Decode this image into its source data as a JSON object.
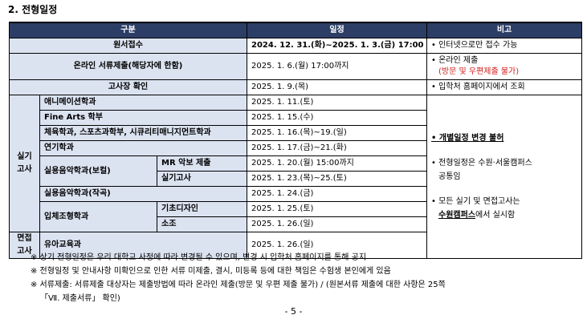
{
  "section_title": "2. 전형일정",
  "table": {
    "headers": {
      "category": "구분",
      "schedule": "일정",
      "remarks": "비고"
    },
    "application": {
      "label": "원서접수",
      "date": "2024. 12. 31.(화)~2025. 1. 3.(금) 17:00",
      "remark": "• 인터넷으로만 접수 가능"
    },
    "document_submission": {
      "label": "온라인 서류제출(해당자에 한함)",
      "date": "2025. 1. 6.(월) 17:00까지",
      "remark1": "• 온라인 제출",
      "remark2": "(방문 및 우편제출 불가)"
    },
    "exam_room": {
      "label": "고사장 확인",
      "date": "2025. 1. 9.(목)",
      "remark": "• 입학처 홈페이지에서 조회"
    },
    "practical_group": {
      "line1": "실기",
      "line2": "고사"
    },
    "interview_group": {
      "line1": "면접",
      "line2": "고사"
    },
    "practical_rows": [
      {
        "label": "애니메이션학과",
        "date": "2025. 1. 11.(토)"
      },
      {
        "label": "Fine Arts 학부",
        "date": "2025. 1. 15.(수)"
      },
      {
        "label": "체육학과, 스포츠과학부, 시큐리티매니지먼트학과",
        "date": "2025. 1. 16.(목)~19.(일)"
      },
      {
        "label": "연기학과",
        "date": "2025. 1. 17.(금)~21.(화)"
      }
    ],
    "vocal": {
      "label": "실용음악학과(보컬)",
      "sub1": "MR 악보 제출",
      "date1": "2025. 1. 20.(월) 15:00까지",
      "sub2": "실기고사",
      "date2": "2025. 1. 23.(목)~25.(토)"
    },
    "composition": {
      "label": "실용음악학과(작곡)",
      "date": "2025. 1. 24.(금)"
    },
    "sculpture": {
      "label": "입체조형학과",
      "sub1": "기초디자인",
      "date1": "2025. 1. 25.(토)",
      "sub2": "소조",
      "date2": "2025. 1. 26.(일)"
    },
    "early_childhood": {
      "label": "유아교육과",
      "date": "2025. 1. 26.(일)"
    },
    "practical_remarks": {
      "r1": "• 개별일정 변경 불허",
      "r2a": "• 전형일정은 수원·서울캠퍼스",
      "r2b": "공통임",
      "r3a": "• 모든 실기 및 면접고사는",
      "r3b_u": "수원캠퍼스",
      "r3b_rest": "에서 실시함"
    }
  },
  "notes": [
    "※ 상기 전형일정은 우리 대학교 사정에 따라 변경될 수 있으며, 변경 시 입학처 홈페이지를 통해 공지",
    "※ 전형일정 및 안내사항 미확인으로 인한 서류 미제출, 결시, 미등록 등에 대한 책임은 수험생 본인에게 있음",
    "※ 서류제출: 서류제출 대상자는 제출방법에 따라 온라인 제출(방문 및 우편 제출 불가) / (원본서류 제출에 대한 사항은 25쪽",
    "「Ⅶ. 제출서류」 확인)"
  ],
  "page_number": "- 5 -",
  "colors": {
    "header_bg": "#2d3e66",
    "shade_bg": "#dbe3f1",
    "warning_red": "#d01c1c"
  }
}
